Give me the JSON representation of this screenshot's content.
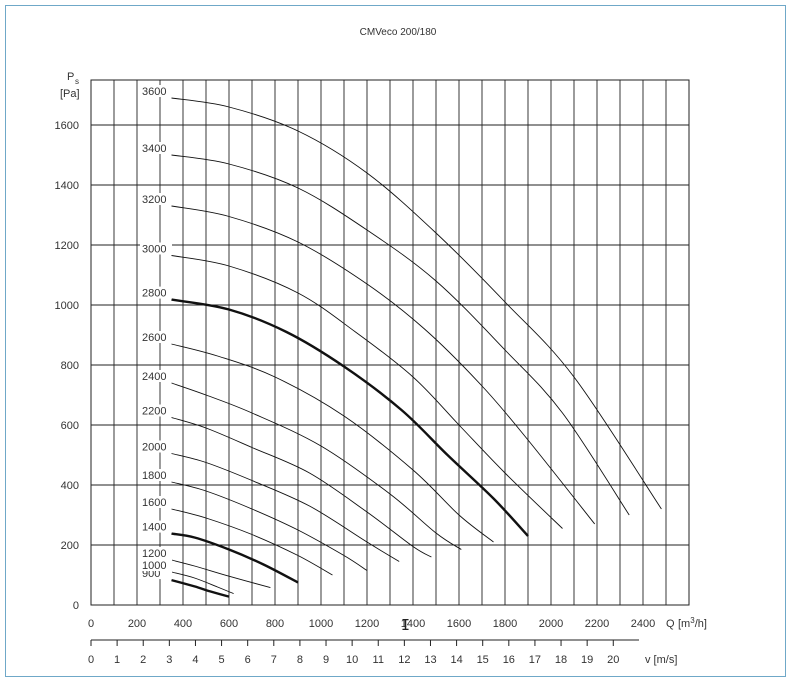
{
  "chart_data": {
    "type": "line",
    "title": "CMVeco 200/180",
    "ylabel_symbol": "P",
    "ylabel_subscript": "s",
    "ylabel_unit": "[Pa]",
    "xlabel_q": "Q",
    "xlabel_q_unit": "[m",
    "xlabel_q_sup": "3",
    "xlabel_q_unit_end": "/h]",
    "xlabel_v": "v [m/s]",
    "x_ticks": [
      "0",
      "200",
      "400",
      "600",
      "800",
      "1000",
      "1200",
      "1400",
      "1600",
      "1800",
      "2000",
      "2200",
      "2400"
    ],
    "v_ticks": [
      "0",
      "1",
      "2",
      "3",
      "4",
      "5",
      "6",
      "7",
      "8",
      "9",
      "10",
      "11",
      "12",
      "13",
      "14",
      "15",
      "16",
      "17",
      "18",
      "19",
      "20"
    ],
    "y_ticks": [
      "0",
      "200",
      "400",
      "600",
      "800",
      "1000",
      "1200",
      "1400",
      "1600"
    ],
    "xlim": [
      0,
      2600
    ],
    "ylim": [
      0,
      1750
    ],
    "vlim": [
      0,
      22.9
    ],
    "grid": true,
    "series": [
      {
        "name": "900",
        "bold": true,
        "points": [
          [
            350,
            83
          ],
          [
            450,
            62
          ],
          [
            520,
            45
          ],
          [
            600,
            28
          ]
        ]
      },
      {
        "name": "1000",
        "bold": false,
        "points": [
          [
            350,
            110
          ],
          [
            450,
            90
          ],
          [
            550,
            60
          ],
          [
            620,
            38
          ]
        ]
      },
      {
        "name": "1200",
        "bold": false,
        "points": [
          [
            350,
            150
          ],
          [
            450,
            130
          ],
          [
            600,
            96
          ],
          [
            780,
            58
          ]
        ]
      },
      {
        "name": "1400",
        "bold": true,
        "points": [
          [
            350,
            238
          ],
          [
            450,
            225
          ],
          [
            600,
            185
          ],
          [
            750,
            135
          ],
          [
            900,
            75
          ]
        ]
      },
      {
        "name": "1600",
        "bold": false,
        "points": [
          [
            350,
            320
          ],
          [
            500,
            290
          ],
          [
            700,
            235
          ],
          [
            900,
            165
          ],
          [
            1050,
            100
          ]
        ]
      },
      {
        "name": "1800",
        "bold": false,
        "points": [
          [
            350,
            410
          ],
          [
            500,
            380
          ],
          [
            700,
            320
          ],
          [
            900,
            250
          ],
          [
            1100,
            165
          ],
          [
            1200,
            115
          ]
        ]
      },
      {
        "name": "2000",
        "bold": false,
        "points": [
          [
            350,
            505
          ],
          [
            500,
            475
          ],
          [
            700,
            415
          ],
          [
            950,
            330
          ],
          [
            1200,
            210
          ],
          [
            1340,
            145
          ]
        ]
      },
      {
        "name": "2200",
        "bold": false,
        "points": [
          [
            350,
            625
          ],
          [
            500,
            590
          ],
          [
            700,
            525
          ],
          [
            950,
            440
          ],
          [
            1200,
            310
          ],
          [
            1400,
            195
          ],
          [
            1480,
            160
          ]
        ]
      },
      {
        "name": "2400",
        "bold": false,
        "points": [
          [
            350,
            740
          ],
          [
            500,
            700
          ],
          [
            700,
            640
          ],
          [
            1000,
            530
          ],
          [
            1300,
            370
          ],
          [
            1500,
            240
          ],
          [
            1610,
            185
          ]
        ]
      },
      {
        "name": "2600",
        "bold": false,
        "points": [
          [
            350,
            870
          ],
          [
            550,
            830
          ],
          [
            800,
            760
          ],
          [
            1100,
            630
          ],
          [
            1400,
            450
          ],
          [
            1600,
            300
          ],
          [
            1750,
            210
          ]
        ]
      },
      {
        "name": "2800",
        "bold": true,
        "points": [
          [
            350,
            1018
          ],
          [
            600,
            985
          ],
          [
            850,
            910
          ],
          [
            1100,
            795
          ],
          [
            1350,
            650
          ],
          [
            1550,
            500
          ],
          [
            1750,
            355
          ],
          [
            1900,
            230
          ]
        ]
      },
      {
        "name": "3000",
        "bold": false,
        "points": [
          [
            350,
            1165
          ],
          [
            600,
            1130
          ],
          [
            900,
            1040
          ],
          [
            1150,
            910
          ],
          [
            1400,
            760
          ],
          [
            1600,
            600
          ],
          [
            1800,
            440
          ],
          [
            2050,
            255
          ]
        ]
      },
      {
        "name": "3200",
        "bold": false,
        "points": [
          [
            350,
            1330
          ],
          [
            600,
            1295
          ],
          [
            900,
            1210
          ],
          [
            1200,
            1070
          ],
          [
            1450,
            920
          ],
          [
            1700,
            730
          ],
          [
            1900,
            550
          ],
          [
            2190,
            270
          ]
        ]
      },
      {
        "name": "3400",
        "bold": false,
        "points": [
          [
            350,
            1500
          ],
          [
            600,
            1470
          ],
          [
            900,
            1390
          ],
          [
            1200,
            1250
          ],
          [
            1500,
            1080
          ],
          [
            1800,
            850
          ],
          [
            2050,
            640
          ],
          [
            2340,
            300
          ]
        ]
      },
      {
        "name": "3600",
        "bold": false,
        "points": [
          [
            350,
            1690
          ],
          [
            600,
            1660
          ],
          [
            900,
            1580
          ],
          [
            1200,
            1440
          ],
          [
            1500,
            1240
          ],
          [
            1800,
            1010
          ],
          [
            2100,
            760
          ],
          [
            2480,
            320
          ]
        ]
      }
    ]
  }
}
